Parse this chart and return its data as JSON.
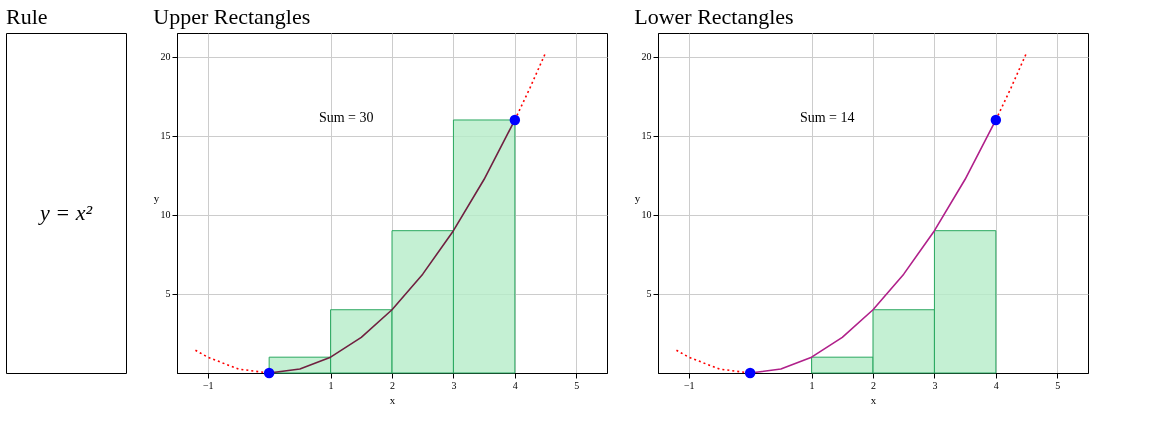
{
  "chart_data": [
    {
      "type": "other",
      "title": "Rule",
      "annotations": [
        "y = x²"
      ]
    },
    {
      "type": "histogram",
      "title": "Upper Rectangles",
      "xlabel": "x",
      "ylabel": "y",
      "bins": [
        0,
        1,
        2,
        3,
        4
      ],
      "values": [
        1,
        4,
        9,
        16
      ],
      "color": "#b5ecc8",
      "xlim": [
        -1.5,
        5.5
      ],
      "ylim": [
        0,
        21.5
      ],
      "xticks": [
        -1,
        1,
        2,
        3,
        4,
        5
      ],
      "yticks": [
        5,
        10,
        15,
        20
      ],
      "grid": true,
      "annotations": [
        "Sum = 30"
      ],
      "series": [
        {
          "type": "line",
          "x": [
            0,
            0.5,
            1,
            1.5,
            2,
            2.5,
            3,
            3.5,
            4
          ],
          "values": [
            0,
            0.25,
            1,
            2.25,
            4,
            6.25,
            9,
            12.25,
            16
          ],
          "color": "#702040",
          "line_style": "solid"
        },
        {
          "type": "line",
          "x": [
            -1.2,
            -1,
            -0.5,
            0
          ],
          "values": [
            1.44,
            1,
            0.25,
            0
          ],
          "color": "#ff0000",
          "line_style": "dotted"
        },
        {
          "type": "line",
          "x": [
            4,
            4.25,
            4.5
          ],
          "values": [
            16,
            18.06,
            20.25
          ],
          "color": "#ff0000",
          "line_style": "dotted"
        },
        {
          "type": "scatter",
          "x": [
            0,
            4
          ],
          "values": [
            0,
            16
          ],
          "color": "#0000ff",
          "marker": "circle"
        }
      ]
    },
    {
      "type": "histogram",
      "title": "Lower Rectangles",
      "xlabel": "x",
      "ylabel": "y",
      "bins": [
        1,
        2,
        3,
        4
      ],
      "values": [
        1,
        4,
        9
      ],
      "color": "#b5ecc8",
      "xlim": [
        -1.5,
        5.5
      ],
      "ylim": [
        0,
        21.5
      ],
      "xticks": [
        -1,
        1,
        2,
        3,
        4,
        5
      ],
      "yticks": [
        5,
        10,
        15,
        20
      ],
      "grid": true,
      "annotations": [
        "Sum = 14"
      ],
      "series": [
        {
          "type": "line",
          "x": [
            0,
            0.5,
            1,
            1.5,
            2,
            2.5,
            3,
            3.5,
            4
          ],
          "values": [
            0,
            0.25,
            1,
            2.25,
            4,
            6.25,
            9,
            12.25,
            16
          ],
          "color": "#b0208a",
          "line_style": "solid"
        },
        {
          "type": "line",
          "x": [
            -1.2,
            -1,
            -0.5,
            0
          ],
          "values": [
            1.44,
            1,
            0.25,
            0
          ],
          "color": "#ff0000",
          "line_style": "dotted"
        },
        {
          "type": "line",
          "x": [
            4,
            4.25,
            4.5
          ],
          "values": [
            16,
            18.06,
            20.25
          ],
          "color": "#ff0000",
          "line_style": "dotted"
        },
        {
          "type": "scatter",
          "x": [
            0,
            4
          ],
          "values": [
            0,
            16
          ],
          "color": "#0000ff",
          "marker": "circle"
        }
      ]
    }
  ]
}
